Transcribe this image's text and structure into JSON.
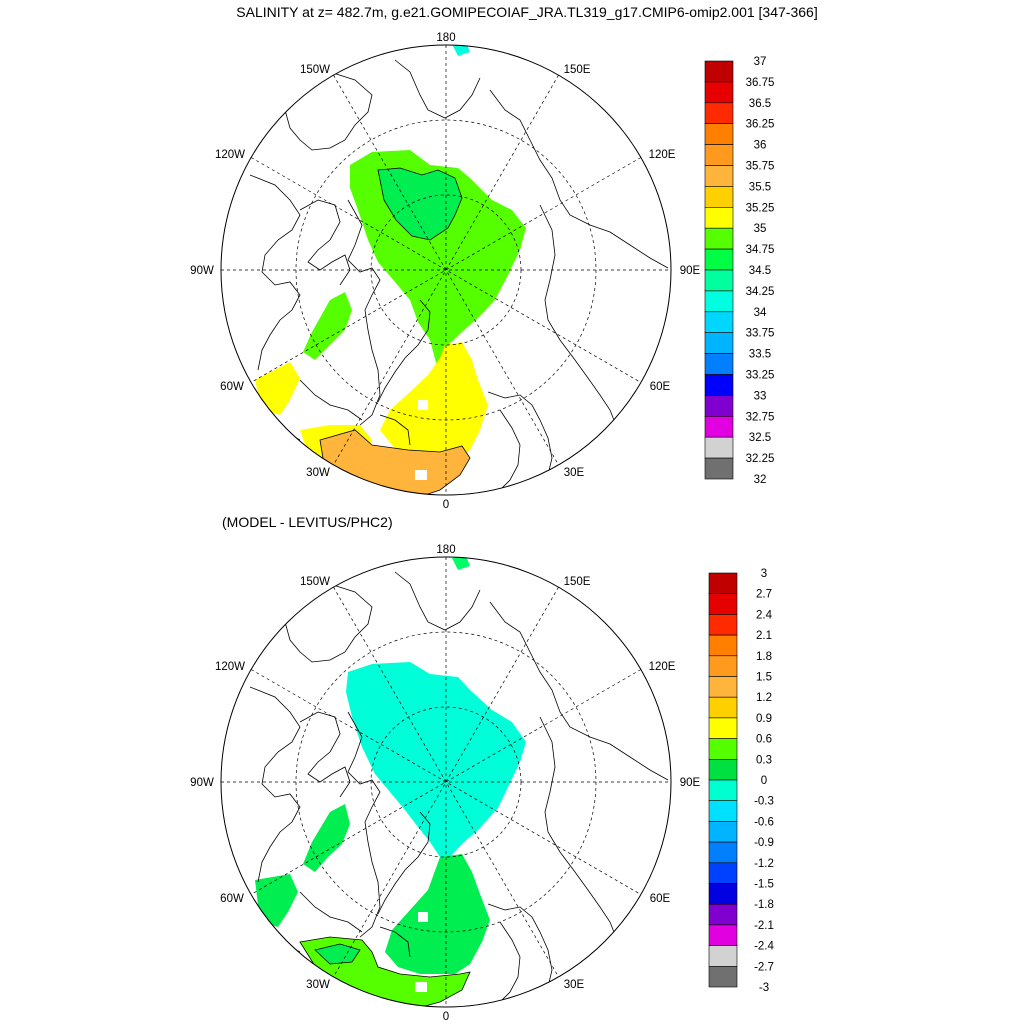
{
  "title": "SALINITY at z= 482.7m, g.e21.GOMIPECOIAF_JRA.TL319_g17.CMIP6-omip2.001 [347-366]",
  "diff_title": "(MODEL - LEVITUS/PHC2)",
  "lon_labels": {
    "top": "180",
    "bottom": "0",
    "w150": "150W",
    "e150": "150E",
    "w120": "120W",
    "e120": "120E",
    "w90": "90W",
    "e90": "90E",
    "w60": "60W",
    "e60": "60E",
    "w30": "30W",
    "e30": "30E"
  },
  "colorbar_top": {
    "labels": [
      "37",
      "36.75",
      "36.5",
      "36.25",
      "36",
      "35.75",
      "35.5",
      "35.25",
      "35",
      "34.75",
      "34.5",
      "34.25",
      "34",
      "33.75",
      "33.5",
      "33.25",
      "33",
      "32.75",
      "32.5",
      "32.25",
      "32"
    ],
    "colors": [
      "#c00000",
      "#e60000",
      "#ff2a00",
      "#ff7f00",
      "#ff9a1e",
      "#ffb43c",
      "#ffd000",
      "#ffff00",
      "#55ff00",
      "#00ff44",
      "#00ff9e",
      "#00ffe1",
      "#00d7ff",
      "#00b4ff",
      "#0080ff",
      "#0000ff",
      "#8000d0",
      "#e000e0",
      "#d2d2d2",
      "#707070"
    ]
  },
  "colorbar_bottom": {
    "labels": [
      "3",
      "2.7",
      "2.4",
      "2.1",
      "1.8",
      "1.5",
      "1.2",
      "0.9",
      "0.6",
      "0.3",
      "0",
      "-0.3",
      "-0.6",
      "-0.9",
      "-1.2",
      "-1.5",
      "-1.8",
      "-2.1",
      "-2.4",
      "-2.7",
      "-3"
    ],
    "colors": [
      "#c00000",
      "#e60000",
      "#ff2a00",
      "#ff7f00",
      "#ff9a1e",
      "#ffb43c",
      "#ffd000",
      "#ffff00",
      "#55ff00",
      "#00e040",
      "#00ffd0",
      "#00e1ff",
      "#00b4ff",
      "#0080ff",
      "#0040ff",
      "#0000e0",
      "#8000d0",
      "#e000e0",
      "#d2d2d2",
      "#707070"
    ]
  },
  "fields": {
    "top": {
      "arctic": "#55ff00",
      "arctic_core": "#00ee50",
      "atlantic_1": "#ffff00",
      "atlantic_2": "#ffb43c",
      "baffin": "#55ff00",
      "bering": "#00ffe1"
    },
    "bottom": {
      "arctic": "#00ffd8",
      "atlantic_1": "#00ee50",
      "atlantic_2": "#55ff00",
      "baffin": "#00ee50",
      "bering": "#00ff66"
    }
  }
}
